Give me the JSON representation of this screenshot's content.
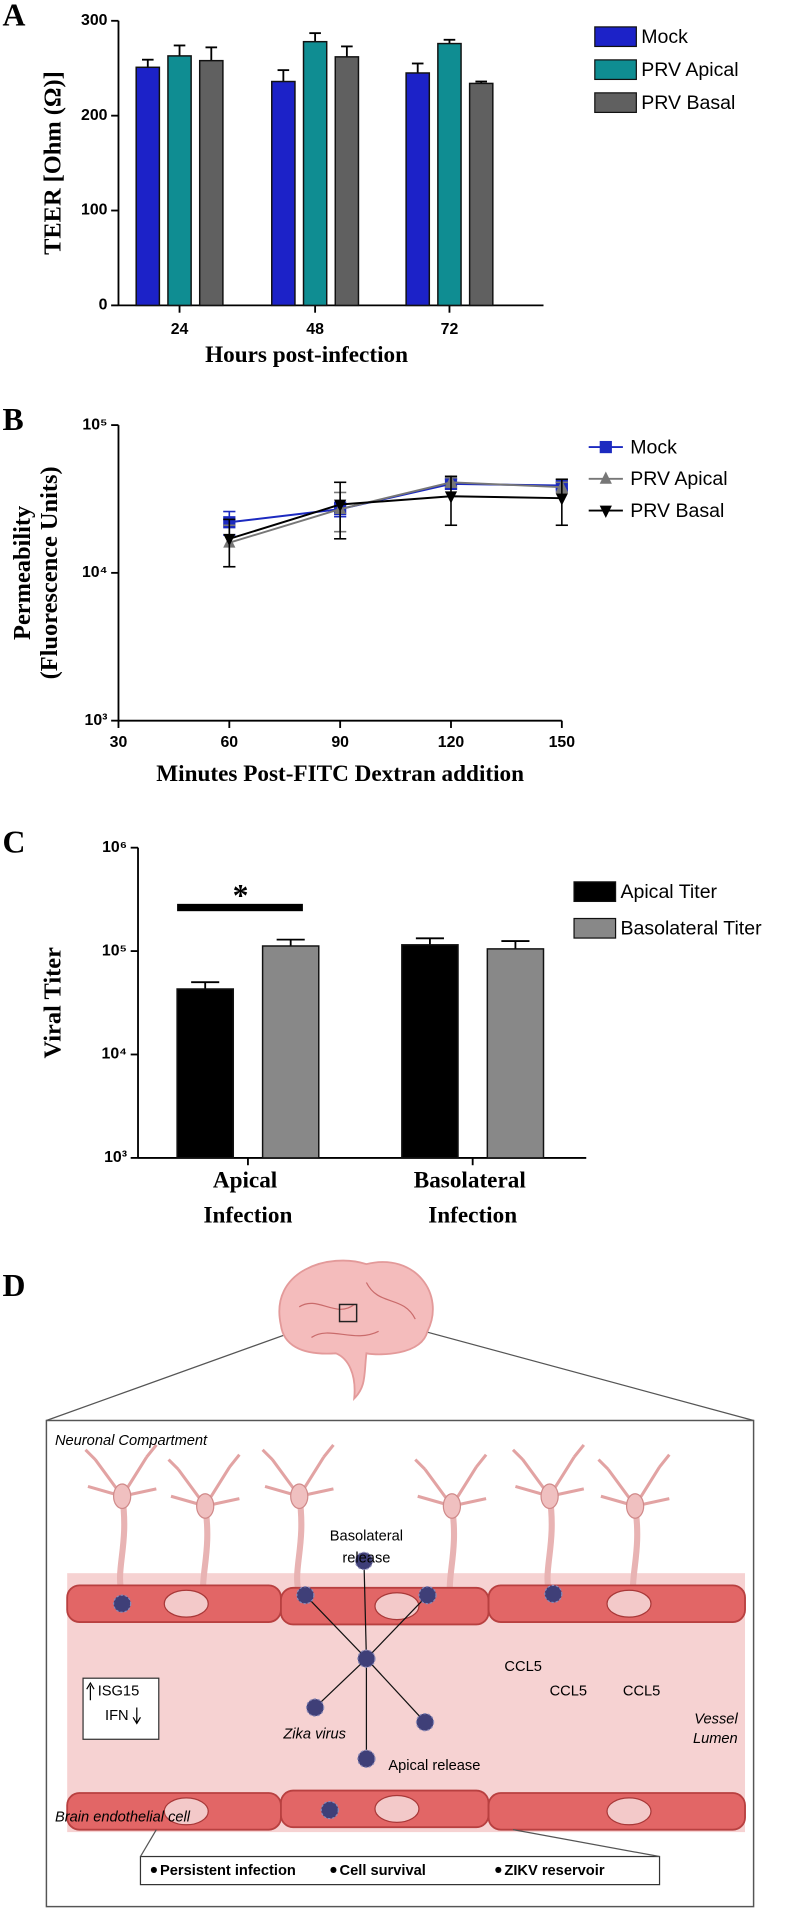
{
  "chart_data": [
    {
      "type": "bar",
      "panel_label": "A",
      "y_label": "TEER [Ohm (Ω)]",
      "x_label": "Hours post-infection",
      "categories": [
        "24",
        "48",
        "72"
      ],
      "series": [
        {
          "name": "Mock",
          "color": "#1c22c8",
          "values": [
            251,
            236,
            245
          ],
          "errors": [
            8,
            12,
            10
          ]
        },
        {
          "name": "PRV Apical",
          "color": "#0f8d92",
          "values": [
            263,
            278,
            276
          ],
          "errors": [
            11,
            9,
            4
          ]
        },
        {
          "name": "PRV Basal",
          "color": "#606060",
          "values": [
            258,
            262,
            234
          ],
          "errors": [
            14,
            11,
            2
          ]
        }
      ],
      "ylim": [
        0,
        300
      ],
      "yticks": [
        0,
        100,
        200,
        300
      ],
      "legend": "right"
    },
    {
      "type": "line",
      "panel_label": "B",
      "y_label": [
        "Permeability",
        "(Fluorescence Units)"
      ],
      "x_label": "Minutes Post-FITC Dextran addition",
      "x": [
        60,
        90,
        120,
        150
      ],
      "series": [
        {
          "name": "Mock",
          "color": "#1c2ac0",
          "marker": "square",
          "values": [
            22000,
            27000,
            40000,
            39000
          ],
          "errors": [
            4000,
            3000,
            3000,
            2000
          ]
        },
        {
          "name": "PRV Apical",
          "color": "#777777",
          "marker": "triangle-up",
          "values": [
            16000,
            27000,
            41000,
            38000
          ],
          "errors": [
            5000,
            8000,
            3000,
            3000
          ]
        },
        {
          "name": "PRV Basal",
          "color": "#000000",
          "marker": "triangle-down",
          "values": [
            17000,
            29000,
            33000,
            32000
          ],
          "errors": [
            6000,
            12000,
            12000,
            11000
          ]
        }
      ],
      "xlim": [
        30,
        150
      ],
      "xticks": [
        30,
        60,
        90,
        120,
        150
      ],
      "ylim": [
        1000,
        100000
      ],
      "log_y": true,
      "yticks": [
        {
          "value": 1000,
          "label": "10³"
        },
        {
          "value": 10000,
          "label": "10⁴"
        },
        {
          "value": 100000,
          "label": "10⁵"
        }
      ],
      "legend": "right"
    },
    {
      "type": "bar",
      "panel_label": "C",
      "y_label": "Viral Titer",
      "significance": "*",
      "categories": [
        "Apical Infection",
        "Basolateral Infection"
      ],
      "series": [
        {
          "name": "Apical Titer",
          "color": "#000000",
          "values": [
            43000,
            115000
          ],
          "errors": [
            7000,
            18000
          ]
        },
        {
          "name": "Basolateral Titer",
          "color": "#888888",
          "values": [
            112000,
            105000
          ],
          "errors": [
            17000,
            20000
          ]
        }
      ],
      "ylim": [
        1000,
        1000000
      ],
      "log_y": true,
      "yticks": [
        {
          "value": 1000,
          "label": "10³"
        },
        {
          "value": 10000,
          "label": "10⁴"
        },
        {
          "value": 100000,
          "label": "10⁵"
        },
        {
          "value": 1000000,
          "label": "10⁶"
        }
      ],
      "legend": "right"
    }
  ],
  "diagram": {
    "panel_label": "D",
    "neuronal_compartment": "Neuronal Compartment",
    "basolateral_release": [
      "Basolateral",
      "release"
    ],
    "zika_virus": "Zika virus",
    "apical_release": "Apical release",
    "vessel_lumen": [
      "Vessel",
      "Lumen"
    ],
    "endothelial_cell": "Brain endothelial cell",
    "isg15": "ISG15",
    "ifn": "IFN",
    "ccl5": [
      "CCL5",
      "CCL5",
      "CCL5"
    ],
    "outcomes": [
      "Persistent infection",
      "Cell  survival",
      "ZIKV reservoir"
    ]
  }
}
